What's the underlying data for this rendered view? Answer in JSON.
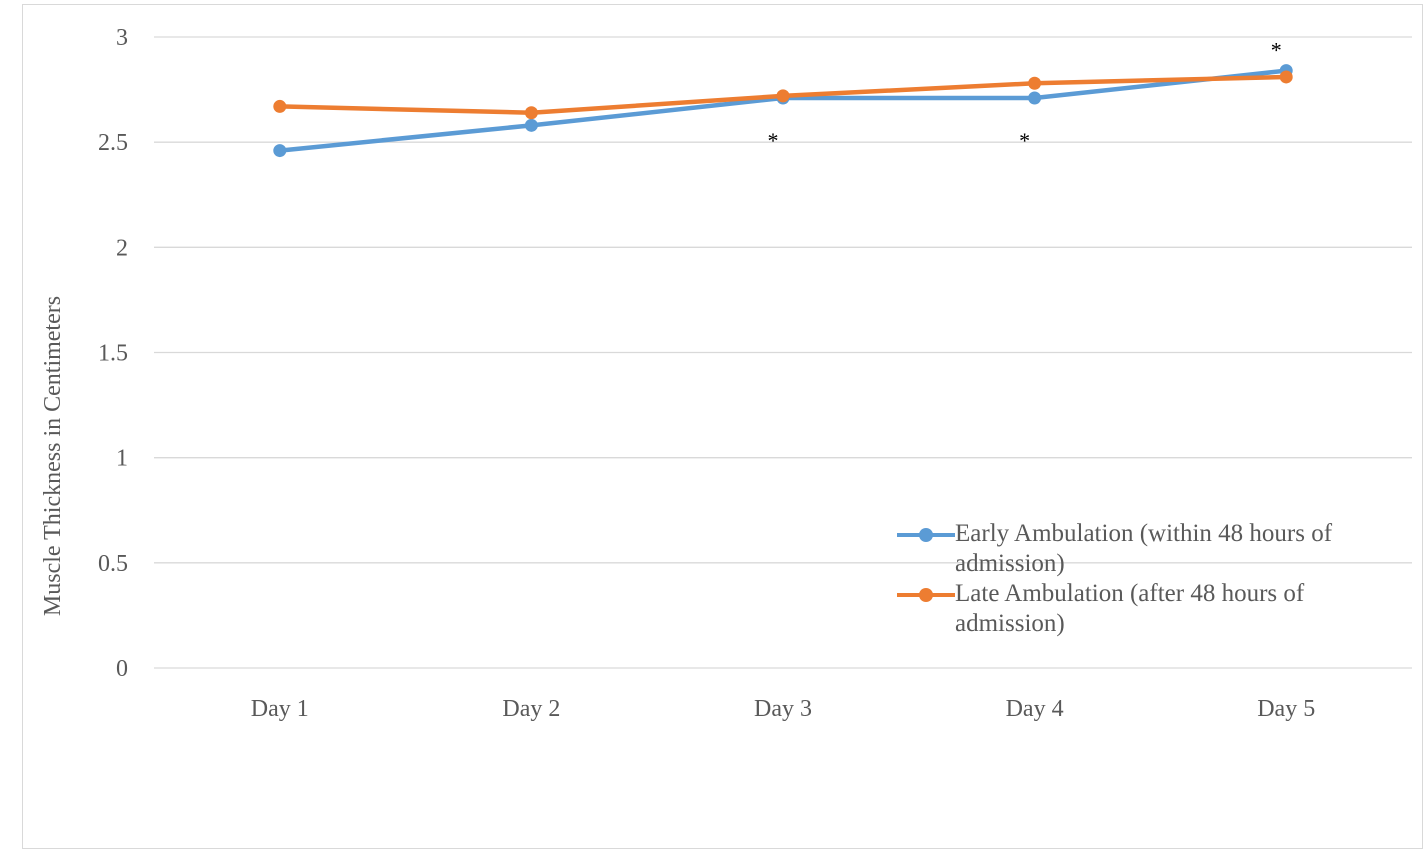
{
  "chart_data": {
    "type": "line",
    "categories": [
      "Day 1",
      "Day 2",
      "Day 3",
      "Day 4",
      "Day 5"
    ],
    "series": [
      {
        "name": "Early Ambulation (within 48 hours of admission)",
        "values": [
          2.46,
          2.58,
          2.71,
          2.71,
          2.84
        ],
        "color": "#5b9bd5"
      },
      {
        "name": "Late Ambulation (after 48 hours of admission)",
        "values": [
          2.67,
          2.64,
          2.72,
          2.78,
          2.81
        ],
        "color": "#ed7d31"
      }
    ],
    "title": "",
    "xlabel": "",
    "ylabel": "Muscle Thickness in Centimeters",
    "ylim": [
      0,
      3
    ],
    "yticks": [
      "0",
      "0.5",
      "1",
      "1.5",
      "2",
      "2.5",
      "3"
    ],
    "grid": true,
    "legend": "bottom-right",
    "annotations": [
      {
        "text": "*",
        "category": "Day 3",
        "value": 2.5
      },
      {
        "text": "*",
        "category": "Day 4",
        "value": 2.5
      },
      {
        "text": "*",
        "category": "Day 5",
        "value": 2.93
      }
    ]
  }
}
